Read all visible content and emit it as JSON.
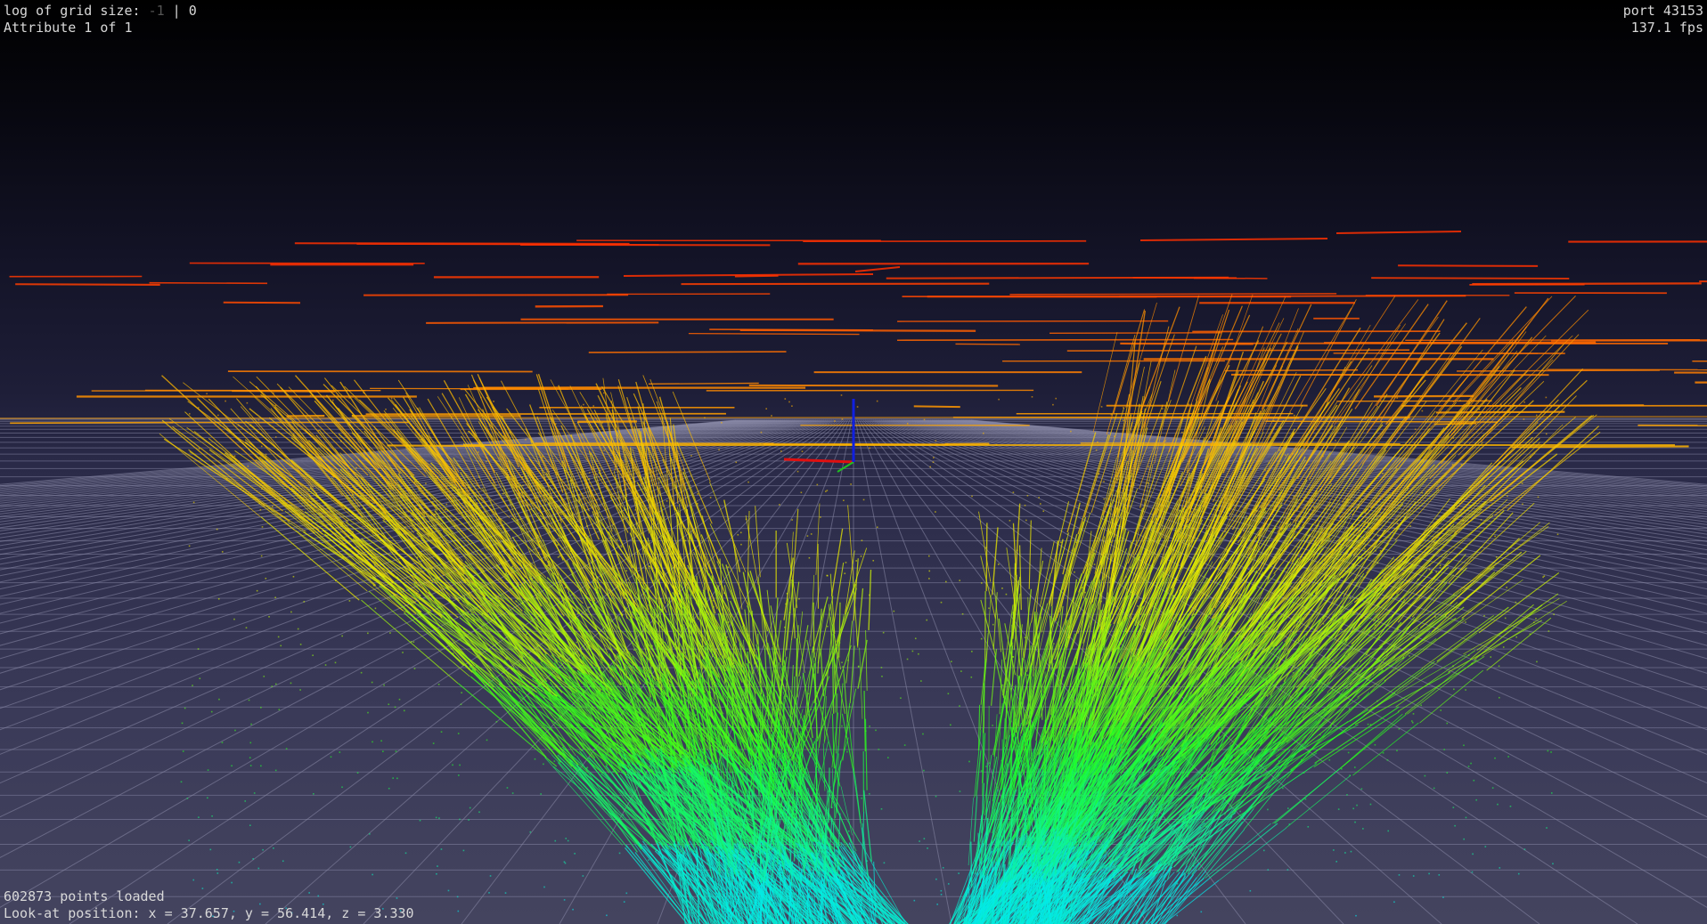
{
  "hud": {
    "grid_label": "log of grid size:",
    "grid_current": "-1",
    "grid_separator": "|",
    "grid_value": "0",
    "attribute": "Attribute 1 of 1",
    "port": "port 43153",
    "fps": "137.1 fps",
    "points_loaded": "602873 points loaded",
    "lookat": "Look-at position: x = 37.657, y = 56.414, z = 3.330"
  },
  "colors": {
    "grid_line": "#8a8aa8",
    "axis_x": "#e01010",
    "axis_y": "#20c020",
    "axis_z": "#1020e0",
    "ramp_low": "#00e8ff",
    "ramp_mid": "#20ff20",
    "ramp_high_1": "#e8f000",
    "ramp_high_2": "#ffb000",
    "ramp_top": "#ff3000"
  }
}
